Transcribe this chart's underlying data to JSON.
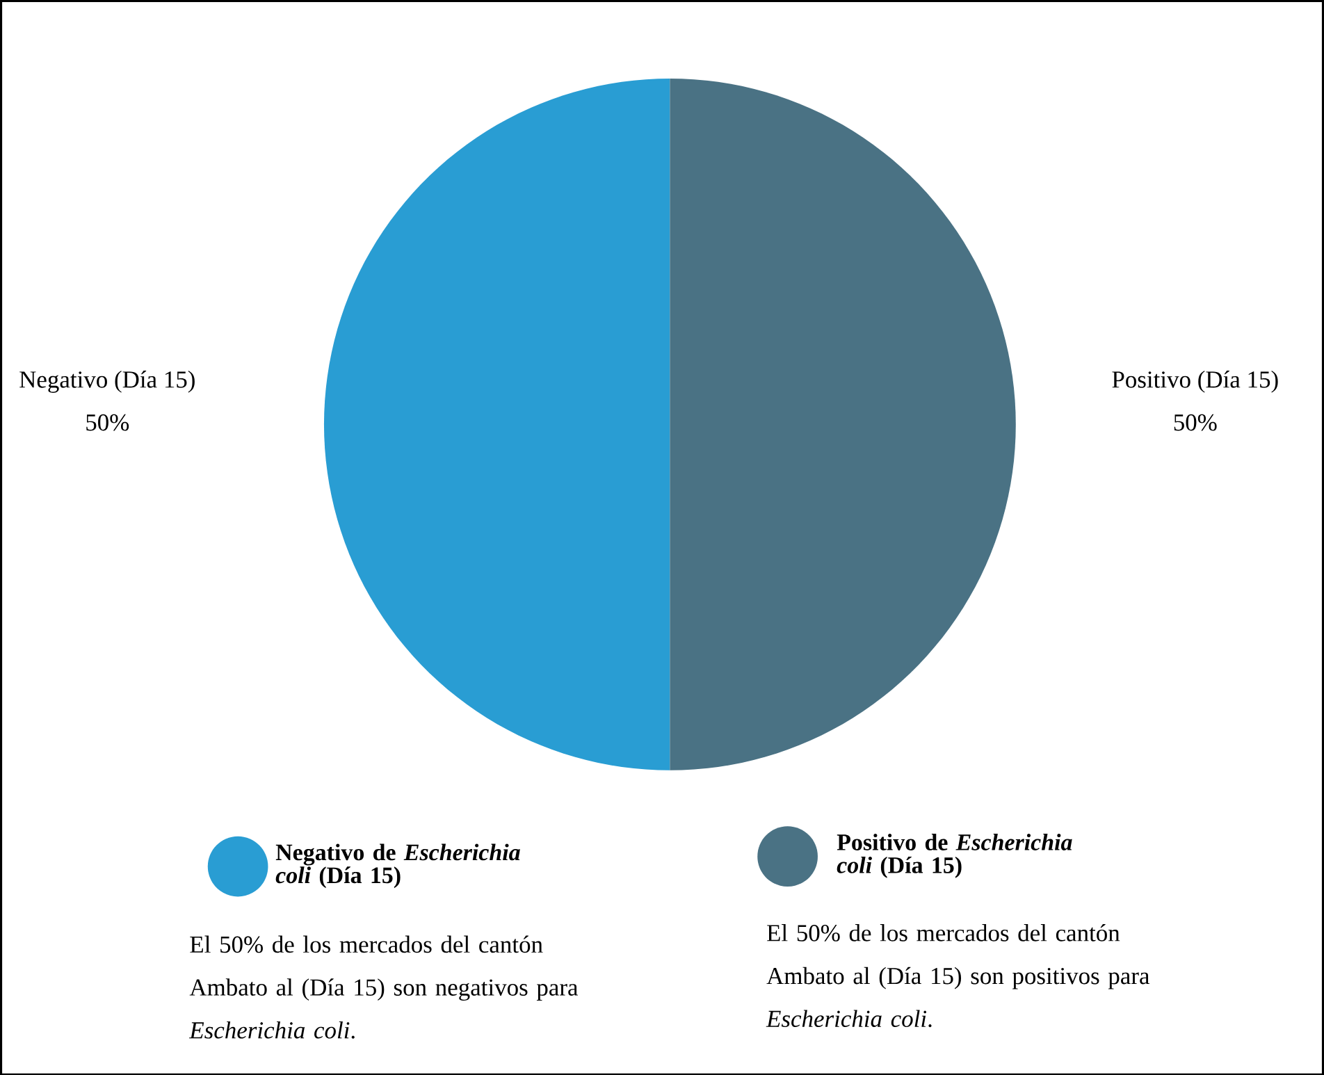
{
  "chart_data": {
    "type": "pie",
    "categories": [
      "Negativo (Día 15)",
      "Positivo (Día 15)"
    ],
    "values": [
      50,
      50
    ],
    "value_labels": [
      "50%",
      "50%"
    ],
    "colors": [
      "#299dd3",
      "#4a7284"
    ],
    "annotations": [
      "Negativo de *Escherichia coli* (Día 15)",
      "Positivo de *Escherichia coli* (Día 15)",
      "El 50% de los mercados del cantón Ambato al (Día 15) son negativos para *Escherichia coli*.",
      "El 50% de los mercados del cantón Ambato al (Día 15) son positivos para *Escherichia coli*."
    ]
  }
}
